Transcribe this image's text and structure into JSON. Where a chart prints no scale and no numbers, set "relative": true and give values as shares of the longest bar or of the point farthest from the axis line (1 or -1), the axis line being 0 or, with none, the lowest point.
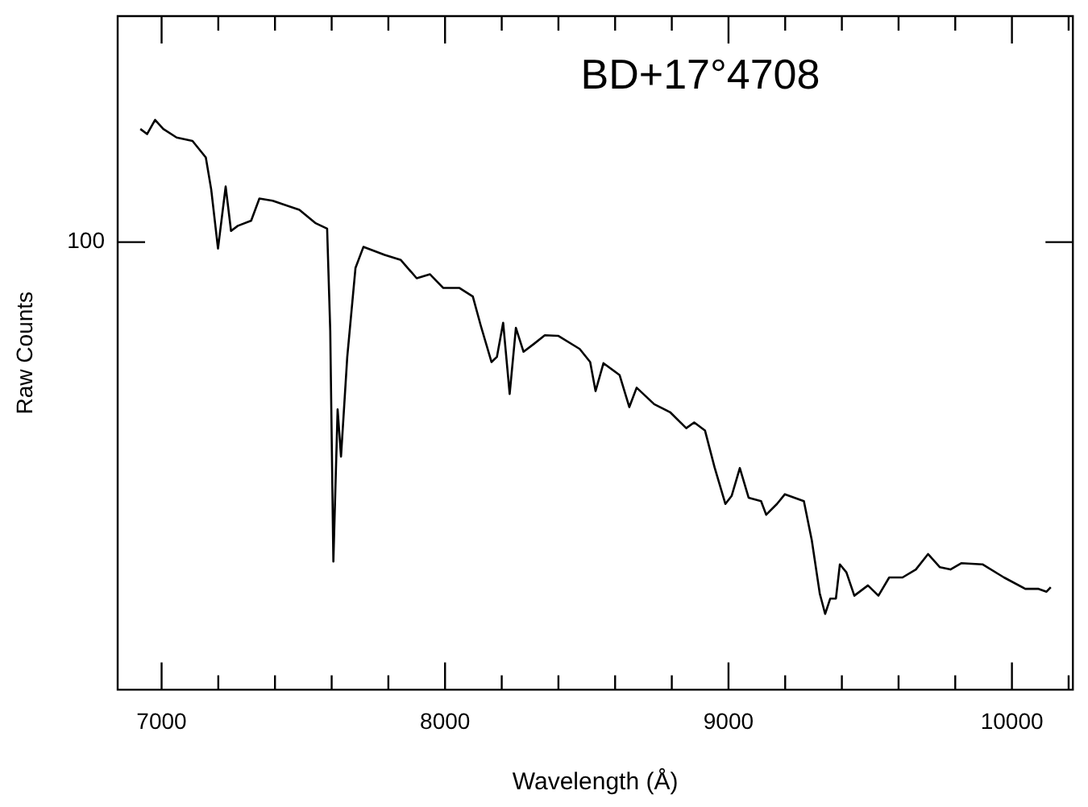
{
  "chart_data": {
    "type": "line",
    "title": "BD+17°4708",
    "xlabel": "Wavelength (Å)",
    "ylabel": "Raw Counts",
    "relative": true,
    "xlim": [
      6845,
      10215
    ],
    "xticks": [
      {
        "value": 7000,
        "label": "7000"
      },
      {
        "value": 7200,
        "label": null
      },
      {
        "value": 7400,
        "label": null
      },
      {
        "value": 7600,
        "label": null
      },
      {
        "value": 7800,
        "label": null
      },
      {
        "value": 8000,
        "label": "8000"
      },
      {
        "value": 8200,
        "label": null
      },
      {
        "value": 8400,
        "label": null
      },
      {
        "value": 8600,
        "label": null
      },
      {
        "value": 8800,
        "label": null
      },
      {
        "value": 9000,
        "label": "9000"
      },
      {
        "value": 9200,
        "label": null
      },
      {
        "value": 9400,
        "label": null
      },
      {
        "value": 9600,
        "label": null
      },
      {
        "value": 9800,
        "label": null
      },
      {
        "value": 10000,
        "label": "10000"
      },
      {
        "value": 10200,
        "label": null
      }
    ],
    "annotations": [
      "100"
    ],
    "grid": false,
    "legend": false,
    "marker": "none",
    "line_style": "solid",
    "series": [
      {
        "color": "#000000",
        "x": [
          6925,
          6949,
          6977,
          7006,
          7053,
          7109,
          7156,
          7175,
          7199,
          7226,
          7245,
          7269,
          7316,
          7345,
          7392,
          7486,
          7542,
          7584,
          7595,
          7606,
          7621,
          7633,
          7655,
          7684,
          7712,
          7787,
          7844,
          7900,
          7947,
          7994,
          8051,
          8098,
          8126,
          8164,
          8183,
          8205,
          8228,
          8250,
          8277,
          8314,
          8352,
          8399,
          8475,
          8512,
          8531,
          8559,
          8616,
          8650,
          8676,
          8738,
          8794,
          8851,
          8879,
          8917,
          8951,
          8989,
          9011,
          9040,
          9071,
          9115,
          9133,
          9171,
          9199,
          9266,
          9294,
          9322,
          9341,
          9359,
          9379,
          9393,
          9416,
          9444,
          9492,
          9529,
          9567,
          9614,
          9661,
          9704,
          9746,
          9783,
          9821,
          9896,
          9972,
          10047,
          10094,
          10122,
          10137
        ],
        "values": [
          0.984,
          0.975,
          1.0,
          0.984,
          0.969,
          0.963,
          0.934,
          0.878,
          0.774,
          0.883,
          0.805,
          0.814,
          0.823,
          0.862,
          0.858,
          0.842,
          0.819,
          0.809,
          0.63,
          0.225,
          0.492,
          0.409,
          0.584,
          0.74,
          0.777,
          0.763,
          0.754,
          0.722,
          0.729,
          0.705,
          0.705,
          0.69,
          0.639,
          0.575,
          0.584,
          0.644,
          0.519,
          0.635,
          0.593,
          0.607,
          0.622,
          0.621,
          0.598,
          0.575,
          0.524,
          0.573,
          0.552,
          0.496,
          0.53,
          0.501,
          0.487,
          0.459,
          0.469,
          0.455,
          0.39,
          0.326,
          0.34,
          0.389,
          0.337,
          0.331,
          0.307,
          0.326,
          0.343,
          0.331,
          0.262,
          0.169,
          0.133,
          0.16,
          0.16,
          0.22,
          0.206,
          0.165,
          0.183,
          0.165,
          0.197,
          0.197,
          0.211,
          0.238,
          0.215,
          0.211,
          0.222,
          0.22,
          0.197,
          0.177,
          0.177,
          0.172,
          0.18
        ]
      }
    ]
  }
}
